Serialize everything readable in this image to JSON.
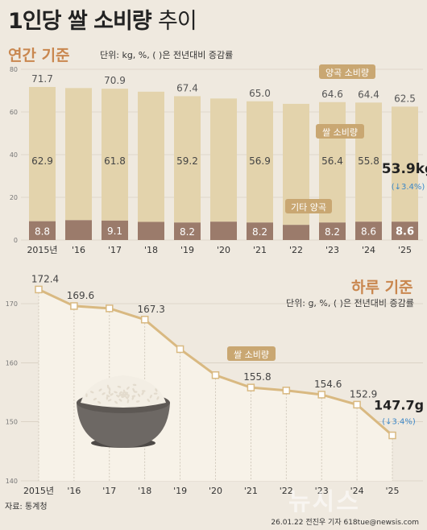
{
  "header": {
    "title_main": "1인당 쌀 소비량",
    "title_suffix": "추이",
    "annual_subtitle": "연간 기준",
    "annual_unit": "단위: kg, %, ( )은 전년대비 증감률",
    "daily_subtitle": "하루 기준",
    "daily_unit": "단위: g, %, ( )은 전년대비 증감률"
  },
  "footer": {
    "source": "자료: 통계청",
    "credit": "26.01.22 전진우 기자 618tue@newsis.com",
    "watermark": "뉴시스"
  },
  "colors": {
    "background": "#efe9df",
    "grain_bar": "#e3d3ac",
    "rice_bar": "#d6c293",
    "other_bar": "#9b7b6b",
    "line": "#d9b981",
    "area": "#f7f2e8",
    "label_box": "#c9a772",
    "accent": "#3d88c8"
  },
  "chart_data": [
    {
      "type": "bar",
      "categories": [
        "2015년",
        "'16",
        "'17",
        "'18",
        "'19",
        "'20",
        "'21",
        "'22",
        "'23",
        "'24",
        "'25"
      ],
      "series": [
        {
          "name": "양곡 소비량",
          "values": [
            71.7,
            71.2,
            70.9,
            69.5,
            67.4,
            66.3,
            65.0,
            63.8,
            64.6,
            64.4,
            62.5
          ],
          "labels": [
            "71.7",
            "",
            "70.9",
            "",
            "67.4",
            "",
            "65.0",
            "",
            "64.6",
            "64.4",
            "62.5"
          ]
        },
        {
          "name": "쌀 소비량",
          "values": [
            62.9,
            61.9,
            61.8,
            61.0,
            59.2,
            57.7,
            56.9,
            56.7,
            56.4,
            55.8,
            53.9
          ],
          "labels": [
            "62.9",
            "",
            "61.8",
            "",
            "59.2",
            "",
            "56.9",
            "",
            "56.4",
            "55.8",
            "53.9kg"
          ]
        },
        {
          "name": "기타 양곡",
          "values": [
            8.8,
            9.3,
            9.1,
            8.5,
            8.2,
            8.6,
            8.2,
            7.1,
            8.2,
            8.6,
            8.6
          ],
          "labels": [
            "8.8",
            "",
            "9.1",
            "",
            "8.2",
            "",
            "8.2",
            "",
            "8.2",
            "8.6",
            "8.6"
          ]
        }
      ],
      "change_note": "(↓3.4%)",
      "yticks": [
        0,
        20,
        40,
        60,
        80
      ],
      "ylim": [
        0,
        80
      ]
    },
    {
      "type": "line",
      "categories": [
        "2015년",
        "'16",
        "'17",
        "'18",
        "'19",
        "'20",
        "'21",
        "'22",
        "'23",
        "'24",
        "'25"
      ],
      "series": [
        {
          "name": "쌀 소비량",
          "values": [
            172.4,
            169.6,
            169.2,
            167.3,
            162.3,
            157.9,
            155.8,
            155.3,
            154.6,
            152.9,
            147.7
          ],
          "labels": [
            "172.4",
            "169.6",
            "",
            "167.3",
            "",
            "",
            "155.8",
            "",
            "154.6",
            "152.9",
            "147.7g"
          ]
        }
      ],
      "change_note": "(↓3.4%)",
      "yticks": [
        140,
        150,
        160,
        170
      ],
      "ylim": [
        140,
        175
      ]
    }
  ]
}
